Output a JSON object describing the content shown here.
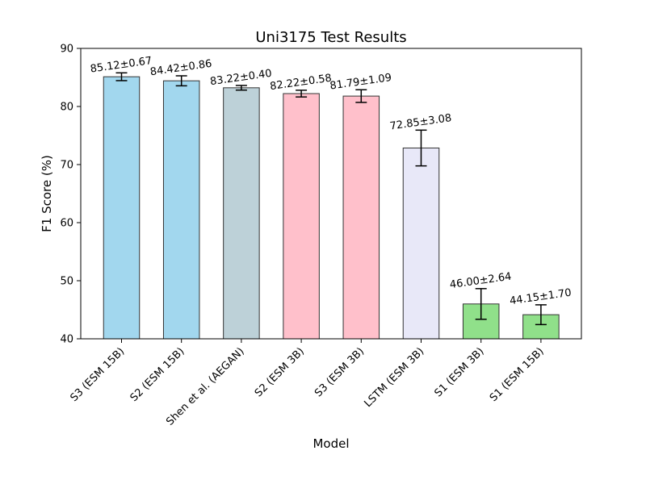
{
  "chart_data": {
    "type": "bar",
    "title": "Uni3175 Test Results",
    "xlabel": "Model",
    "ylabel": "F1 Score (%)",
    "ylim": [
      40,
      90
    ],
    "yticks": [
      40,
      50,
      60,
      70,
      80,
      90
    ],
    "grid": false,
    "categories": [
      "S3 (ESM 15B)",
      "S2 (ESM 15B)",
      "Shen et al. (AEGAN)",
      "S2 (ESM 3B)",
      "S3 (ESM 3B)",
      "LSTM (ESM 3B)",
      "S1 (ESM 3B)",
      "S1 (ESM 15B)"
    ],
    "values": [
      85.12,
      84.42,
      83.22,
      82.22,
      81.79,
      72.85,
      46.0,
      44.15
    ],
    "errors": [
      0.67,
      0.86,
      0.4,
      0.58,
      1.09,
      3.08,
      2.64,
      1.7
    ],
    "value_labels": [
      "85.12±0.67",
      "84.42±0.86",
      "83.22±0.40",
      "82.22±0.58",
      "81.79±1.09",
      "72.85±3.08",
      "46.00±2.64",
      "44.15±1.70"
    ],
    "colors": [
      "#a2d7ee",
      "#a2d7ee",
      "#bdd1d8",
      "#ffc0cb",
      "#ffc0cb",
      "#e8e8f8",
      "#90e08a",
      "#90e08a"
    ]
  }
}
